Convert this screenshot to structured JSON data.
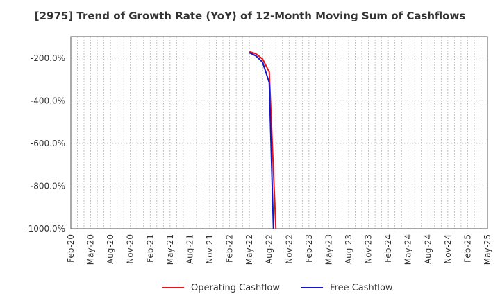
{
  "chart_data": {
    "type": "line",
    "title": "[2975]  Trend of Growth Rate (YoY) of 12-Month Moving Sum of Cashflows",
    "x": [
      "Feb-20",
      "May-20",
      "Aug-20",
      "Nov-20",
      "Feb-21",
      "May-21",
      "Aug-21",
      "Nov-21",
      "Feb-22",
      "May-22",
      "Aug-22",
      "Nov-22",
      "Feb-23",
      "May-23",
      "Aug-23",
      "Nov-23",
      "Feb-24",
      "May-24",
      "Aug-24",
      "Nov-24",
      "Feb-25",
      "May-25"
    ],
    "xlim": [
      "2020-02",
      "2025-05"
    ],
    "ylim": [
      -1000,
      -100
    ],
    "yticks": [
      -200,
      -400,
      -600,
      -800,
      -1000
    ],
    "ytick_labels": [
      "-200.0%",
      "-400.0%",
      "-600.0%",
      "-800.0%",
      "-1000.0%"
    ],
    "grid": true,
    "legend_position": "bottom",
    "series": [
      {
        "name": "Operating Cashflow",
        "color": "#e8141c",
        "points": [
          [
            "2022-05",
            -170
          ],
          [
            "2022-06",
            -180
          ],
          [
            "2022-07",
            -205
          ],
          [
            "2022-08",
            -265
          ],
          [
            "2022-09",
            -1000
          ]
        ]
      },
      {
        "name": "Free Cashflow",
        "color": "#1414c8",
        "points": [
          [
            "2022-05",
            -175
          ],
          [
            "2022-06",
            -190
          ],
          [
            "2022-07",
            -220
          ],
          [
            "2022-08",
            -315
          ],
          [
            "2022-08-20",
            -1000
          ]
        ]
      }
    ]
  }
}
